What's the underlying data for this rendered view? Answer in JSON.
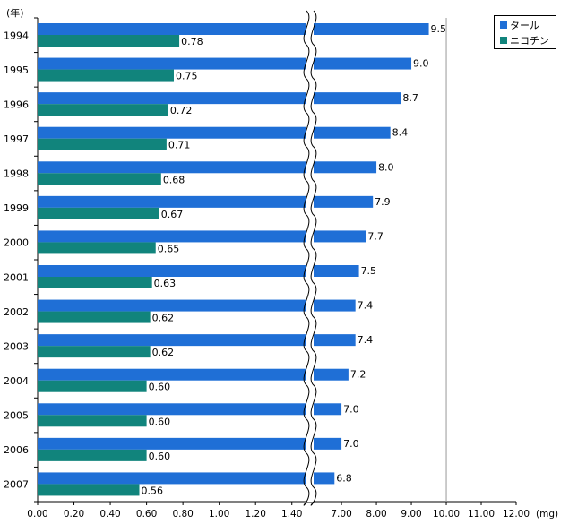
{
  "chart_data": {
    "type": "bar",
    "orientation": "horizontal",
    "broken_axis": true,
    "y_unit_label": "(年)",
    "x_unit_label": "(mg)",
    "categories": [
      "1994",
      "1995",
      "1996",
      "1997",
      "1998",
      "1999",
      "2000",
      "2001",
      "2002",
      "2003",
      "2004",
      "2005",
      "2006",
      "2007"
    ],
    "series": [
      {
        "name": "タール",
        "color": "#1f6fd6",
        "values": [
          9.5,
          9.0,
          8.7,
          8.4,
          8.0,
          7.9,
          7.7,
          7.5,
          7.4,
          7.4,
          7.2,
          7.0,
          7.0,
          6.8
        ],
        "labels": [
          "9.5",
          "9.0",
          "8.7",
          "8.4",
          "8.0",
          "7.9",
          "7.7",
          "7.5",
          "7.4",
          "7.4",
          "7.2",
          "7.0",
          "7.0",
          "6.8"
        ]
      },
      {
        "name": "ニコチン",
        "color": "#11847c",
        "values": [
          0.78,
          0.75,
          0.72,
          0.71,
          0.68,
          0.67,
          0.65,
          0.63,
          0.62,
          0.62,
          0.6,
          0.6,
          0.6,
          0.56
        ],
        "labels": [
          "0.78",
          "0.75",
          "0.72",
          "0.71",
          "0.68",
          "0.67",
          "0.65",
          "0.63",
          "0.62",
          "0.62",
          "0.60",
          "0.60",
          "0.60",
          "0.56"
        ]
      }
    ],
    "x_ticks_lower": [
      "0.00",
      "0.20",
      "0.40",
      "0.60",
      "0.80",
      "1.00",
      "1.20",
      "1.40"
    ],
    "x_ticks_upper": [
      "7.00",
      "8.00",
      "9.00",
      "10.00",
      "11.00",
      "12.00"
    ],
    "xlim_lower": [
      0,
      1.5
    ],
    "xlim_upper": [
      6.1,
      12
    ],
    "reference_line": 10,
    "legend_position": "top-right"
  }
}
